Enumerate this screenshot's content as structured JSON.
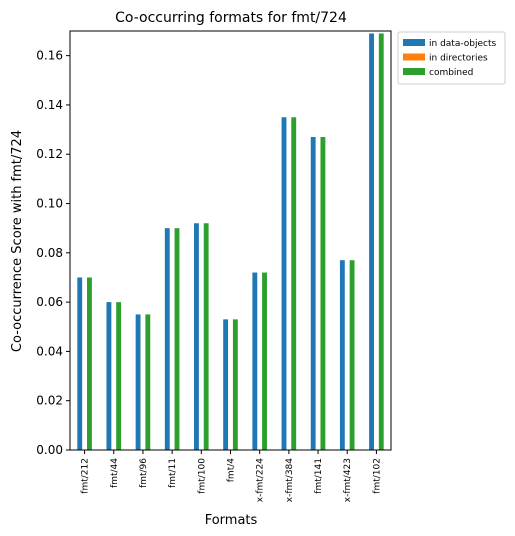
{
  "chart_data": {
    "type": "bar",
    "title": "Co-occurring formats for fmt/724",
    "xlabel": "Formats",
    "ylabel": "Co-occurrence Score with fmt/724",
    "ylim": [
      0,
      0.17
    ],
    "yticks": [
      "0.00",
      "0.02",
      "0.04",
      "0.06",
      "0.08",
      "0.10",
      "0.12",
      "0.14",
      "0.16"
    ],
    "categories": [
      "fmt/212",
      "fmt/44",
      "fmt/96",
      "fmt/11",
      "fmt/100",
      "fmt/4",
      "x-fmt/224",
      "x-fmt/384",
      "fmt/141",
      "x-fmt/423",
      "fmt/102"
    ],
    "series": [
      {
        "name": "in data-objects",
        "color": "#1f77b4",
        "values": [
          0.07,
          0.06,
          0.055,
          0.09,
          0.092,
          0.053,
          0.072,
          0.135,
          0.127,
          0.077,
          0.169
        ]
      },
      {
        "name": "in directories",
        "color": "#ff7f0e",
        "values": [
          0,
          0,
          0,
          0,
          0,
          0,
          0,
          0,
          0,
          0,
          0
        ]
      },
      {
        "name": "combined",
        "color": "#2ca02c",
        "values": [
          0.07,
          0.06,
          0.055,
          0.09,
          0.092,
          0.053,
          0.072,
          0.135,
          0.127,
          0.077,
          0.169
        ]
      }
    ],
    "legend_position": "outside-top-right",
    "grid": false
  }
}
